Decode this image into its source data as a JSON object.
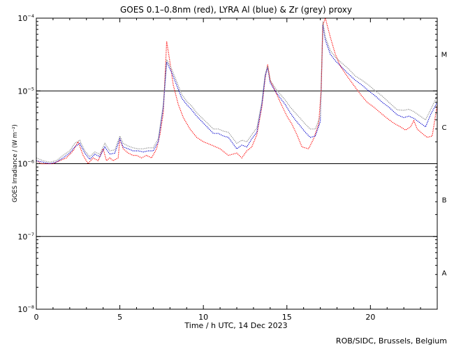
{
  "chart_data": {
    "type": "line",
    "title": "GOES 0.1–0.8nm (red), LYRA Al (blue) & Zr (grey) proxy",
    "xlabel": "Time / h UTC, 14 Dec 2023",
    "ylabel": "GOES Irradiance / (W m⁻²)",
    "xlim": [
      0,
      24
    ],
    "ylim": [
      1e-08,
      0.0001
    ],
    "yscale": "log",
    "x_ticks": [
      {
        "v": 0,
        "label": "0"
      },
      {
        "v": 5,
        "label": "5"
      },
      {
        "v": 10,
        "label": "10"
      },
      {
        "v": 15,
        "label": "15"
      },
      {
        "v": 20,
        "label": "20"
      }
    ],
    "y_ticks": [
      {
        "v": 1e-08,
        "base": "10",
        "exp": "−8"
      },
      {
        "v": 1e-07,
        "base": "10",
        "exp": "−7"
      },
      {
        "v": 1e-06,
        "base": "10",
        "exp": "−6"
      },
      {
        "v": 1e-05,
        "base": "10",
        "exp": "−5"
      },
      {
        "v": 0.0001,
        "base": "10",
        "exp": "−4"
      }
    ],
    "class_lines": [
      1e-07,
      1e-06,
      1e-05
    ],
    "flare_classes": [
      {
        "label": "A",
        "v": 3.2e-08
      },
      {
        "label": "B",
        "v": 3.2e-07
      },
      {
        "label": "C",
        "v": 3.2e-06
      },
      {
        "label": "M",
        "v": 3.2e-05
      }
    ],
    "series": [
      {
        "name": "GOES 0.1–0.8nm",
        "color": "#ff0000",
        "x": [
          0,
          0.3,
          0.7,
          1,
          1.4,
          1.8,
          2.2,
          2.5,
          2.8,
          3.1,
          3.4,
          3.7,
          4,
          4.2,
          4.4,
          4.6,
          4.9,
          5,
          5.2,
          5.5,
          5.8,
          6,
          6.3,
          6.6,
          6.9,
          7.2,
          7.4,
          7.6,
          7.7,
          7.8,
          8,
          8.2,
          8.5,
          8.8,
          9.2,
          9.6,
          10,
          10.5,
          11,
          11.5,
          12,
          12.3,
          12.6,
          12.9,
          13.2,
          13.5,
          13.7,
          13.85,
          14,
          14.3,
          14.6,
          15,
          15.3,
          15.6,
          15.9,
          16.3,
          16.6,
          16.9,
          17.05,
          17.15,
          17.3,
          17.6,
          17.9,
          18.2,
          18.6,
          19,
          19.4,
          19.8,
          20.2,
          20.6,
          21,
          21.4,
          21.8,
          22.1,
          22.4,
          22.6,
          22.8,
          23.1,
          23.4,
          23.7,
          24
        ],
        "values": [
          1.1e-06,
          1e-06,
          1e-06,
          1e-06,
          1.1e-06,
          1.2e-06,
          1.5e-06,
          2e-06,
          1.3e-06,
          1e-06,
          1.2e-06,
          1.1e-06,
          1.6e-06,
          1.1e-06,
          1.2e-06,
          1.1e-06,
          1.2e-06,
          2.2e-06,
          1.6e-06,
          1.4e-06,
          1.3e-06,
          1.3e-06,
          1.2e-06,
          1.3e-06,
          1.2e-06,
          1.6e-06,
          2.5e-06,
          5e-06,
          1.5e-05,
          4.8e-05,
          2.5e-05,
          1.2e-05,
          6.5e-06,
          4.3e-06,
          3e-06,
          2.3e-06,
          2e-06,
          1.8e-06,
          1.6e-06,
          1.3e-06,
          1.4e-06,
          1.2e-06,
          1.5e-06,
          1.7e-06,
          2.5e-06,
          6e-06,
          1.5e-05,
          2.3e-05,
          1.4e-05,
          1e-05,
          7e-06,
          4.5e-06,
          3.5e-06,
          2.5e-06,
          1.7e-06,
          1.6e-06,
          2.2e-06,
          3.5e-06,
          1e-05,
          8e-05,
          0.00011,
          5.5e-05,
          3.2e-05,
          2.2e-05,
          1.6e-05,
          1.2e-05,
          9e-06,
          7e-06,
          6e-06,
          5e-06,
          4.2e-06,
          3.6e-06,
          3.2e-06,
          2.9e-06,
          3.2e-06,
          3.9e-06,
          3e-06,
          2.6e-06,
          2.3e-06,
          2.4e-06,
          6.5e-06
        ]
      },
      {
        "name": "LYRA Al",
        "color": "#0000cc",
        "x": [
          0,
          0.4,
          0.8,
          1.2,
          1.6,
          2,
          2.3,
          2.6,
          2.9,
          3.2,
          3.5,
          3.8,
          4.1,
          4.4,
          4.7,
          5,
          5.2,
          5.5,
          5.8,
          6.1,
          6.4,
          6.7,
          7,
          7.3,
          7.6,
          7.8,
          8.1,
          8.4,
          8.7,
          9,
          9.3,
          9.6,
          10.6,
          10.9,
          11.2,
          11.5,
          12,
          12.3,
          12.6,
          12.9,
          13.2,
          13.5,
          13.7,
          13.85,
          14,
          14.3,
          14.6,
          14.9,
          15.2,
          15.5,
          15.8,
          16.1,
          16.4,
          16.7,
          17,
          17.15,
          17.3,
          17.6,
          17.9,
          18.3,
          18.7,
          19.1,
          19.5,
          19.9,
          20.3,
          20.7,
          21.1,
          21.6,
          22,
          22.3,
          22.6,
          23.3,
          23.6,
          24
        ],
        "values": [
          1.1e-06,
          1.05e-06,
          1e-06,
          1.05e-06,
          1.2e-06,
          1.4e-06,
          1.7e-06,
          1.9e-06,
          1.4e-06,
          1.15e-06,
          1.35e-06,
          1.25e-06,
          1.7e-06,
          1.35e-06,
          1.4e-06,
          2.2e-06,
          1.7e-06,
          1.6e-06,
          1.5e-06,
          1.5e-06,
          1.45e-06,
          1.5e-06,
          1.5e-06,
          2e-06,
          6e-06,
          2.5e-05,
          1.8e-05,
          1.2e-05,
          8e-06,
          6.5e-06,
          5.5e-06,
          4.5e-06,
          2.6e-06,
          2.6e-06,
          2.4e-06,
          2.3e-06,
          1.6e-06,
          1.8e-06,
          1.7e-06,
          2.2e-06,
          2.7e-06,
          6.5e-06,
          1.6e-05,
          2.1e-05,
          1.3e-05,
          1e-05,
          8e-06,
          6.5e-06,
          5e-06,
          4e-06,
          3.3e-06,
          2.7e-06,
          2.3e-06,
          2.4e-06,
          3.8e-06,
          8e-05,
          5e-05,
          3.2e-05,
          2.6e-05,
          2.1e-05,
          1.7e-05,
          1.4e-05,
          1.2e-05,
          1e-05,
          8.5e-06,
          7e-06,
          6e-06,
          4.7e-06,
          4.3e-06,
          4.5e-06,
          4.2e-06,
          3.2e-06,
          4.7e-06,
          7e-06
        ]
      },
      {
        "name": "LYRA Zr",
        "color": "#888888",
        "x": [
          0,
          0.4,
          0.8,
          1.2,
          1.6,
          2,
          2.3,
          2.6,
          2.9,
          3.2,
          3.5,
          3.8,
          4.1,
          4.4,
          4.7,
          5,
          5.2,
          5.5,
          5.8,
          6.1,
          6.4,
          6.7,
          7,
          7.3,
          7.6,
          7.8,
          8.1,
          8.4,
          8.7,
          9,
          9.3,
          9.6,
          10.6,
          10.9,
          11.2,
          11.5,
          12,
          12.3,
          12.6,
          12.9,
          13.2,
          13.5,
          13.7,
          13.85,
          14,
          14.3,
          14.6,
          14.9,
          15.2,
          15.5,
          15.8,
          16.1,
          16.4,
          16.7,
          17,
          17.15,
          17.3,
          17.6,
          17.9,
          18.3,
          18.7,
          19.1,
          19.5,
          19.9,
          20.3,
          20.7,
          21.1,
          21.6,
          22,
          22.3,
          22.6,
          23.3,
          23.6,
          24
        ],
        "values": [
          1.2e-06,
          1.1e-06,
          1.05e-06,
          1.1e-06,
          1.3e-06,
          1.5e-06,
          1.9e-06,
          2.1e-06,
          1.5e-06,
          1.25e-06,
          1.45e-06,
          1.35e-06,
          1.9e-06,
          1.5e-06,
          1.55e-06,
          2.4e-06,
          1.9e-06,
          1.75e-06,
          1.65e-06,
          1.6e-06,
          1.6e-06,
          1.65e-06,
          1.65e-06,
          2.2e-06,
          6.5e-06,
          2.7e-05,
          2e-05,
          1.35e-05,
          9e-06,
          7.2e-06,
          6.2e-06,
          5e-06,
          3e-06,
          3e-06,
          2.8e-06,
          2.7e-06,
          1.9e-06,
          2.1e-06,
          2e-06,
          2.5e-06,
          3.1e-06,
          7e-06,
          1.7e-05,
          2.2e-05,
          1.4e-05,
          1.1e-05,
          9e-06,
          7.5e-06,
          6e-06,
          5e-06,
          4.2e-06,
          3.5e-06,
          3e-06,
          3e-06,
          4.5e-06,
          9e-05,
          5.5e-05,
          3.6e-05,
          2.9e-05,
          2.4e-05,
          2e-05,
          1.6e-05,
          1.4e-05,
          1.2e-05,
          1e-05,
          8.5e-06,
          7e-06,
          5.5e-06,
          5.4e-06,
          5.6e-06,
          5.2e-06,
          4e-06,
          5.5e-06,
          8.5e-06
        ]
      }
    ]
  },
  "footer": {
    "credit": "ROB/SIDC, Brussels, Belgium"
  }
}
